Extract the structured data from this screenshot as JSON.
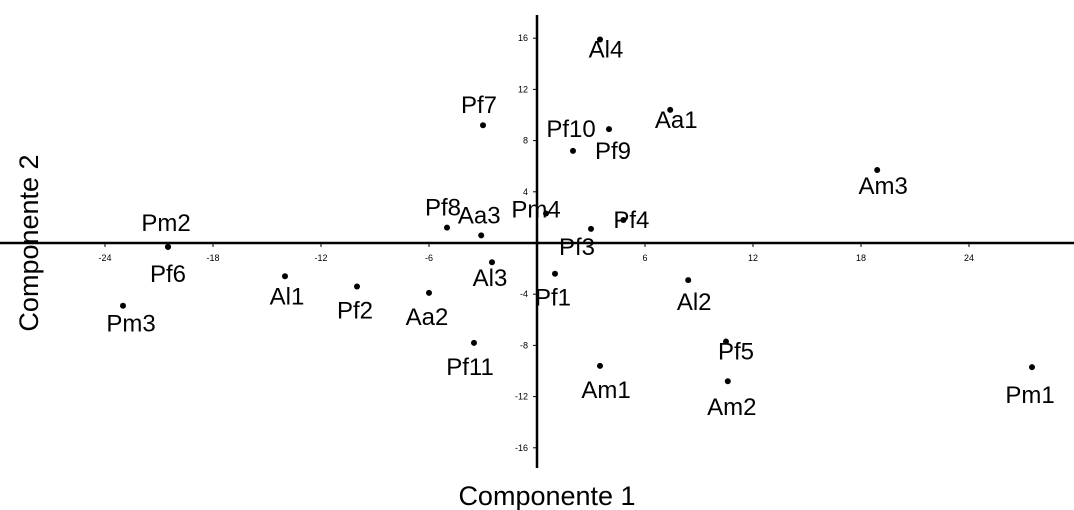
{
  "chart_data": {
    "type": "scatter",
    "title": "",
    "xlabel": "Componente 1",
    "ylabel": "Componente 2",
    "xlim": [
      -31,
      30
    ],
    "ylim": [
      -17.5,
      17.5
    ],
    "grid": false,
    "x_ticks": [
      -24,
      -18,
      -12,
      -6,
      6,
      12,
      18,
      24
    ],
    "y_ticks": [
      16,
      12,
      8,
      4,
      -4,
      -8,
      -12,
      -16
    ],
    "points": [
      {
        "label": "Al4",
        "x": 3.5,
        "y": 15.9
      },
      {
        "label": "Pf7",
        "x": -3.0,
        "y": 9.2
      },
      {
        "label": "Pf10",
        "x": 2.0,
        "y": 7.2
      },
      {
        "label": "Pf9",
        "x": 4.0,
        "y": 8.9
      },
      {
        "label": "Aa1",
        "x": 7.4,
        "y": 10.4
      },
      {
        "label": "Am3",
        "x": 18.9,
        "y": 5.7
      },
      {
        "label": "Pm4",
        "x": 0.5,
        "y": 2.3
      },
      {
        "label": "Pf8",
        "x": -5.0,
        "y": 1.2
      },
      {
        "label": "Aa3",
        "x": -3.1,
        "y": 0.6
      },
      {
        "label": "Pf4",
        "x": 4.8,
        "y": 1.8
      },
      {
        "label": "Pf3",
        "x": 3.0,
        "y": 1.1
      },
      {
        "label": "Pm2",
        "x": -20.5,
        "y": -0.3
      },
      {
        "label": "Pf6",
        "x": -20.5,
        "y": -0.3
      },
      {
        "label": "Al1",
        "x": -14.0,
        "y": -2.6
      },
      {
        "label": "Pf2",
        "x": -10.0,
        "y": -3.4
      },
      {
        "label": "Aa2",
        "x": -6.0,
        "y": -3.9
      },
      {
        "label": "Al3",
        "x": -2.5,
        "y": -1.5
      },
      {
        "label": "Pf1",
        "x": 1.0,
        "y": -2.4
      },
      {
        "label": "Al2",
        "x": 8.4,
        "y": -2.9
      },
      {
        "label": "Pm3",
        "x": -23.0,
        "y": -4.9
      },
      {
        "label": "Pf11",
        "x": -3.5,
        "y": -7.8
      },
      {
        "label": "Pf5",
        "x": 10.5,
        "y": -7.7
      },
      {
        "label": "Am1",
        "x": 3.5,
        "y": -9.6
      },
      {
        "label": "Am2",
        "x": 10.6,
        "y": -10.8
      },
      {
        "label": "Pm1",
        "x": 27.5,
        "y": -9.7
      }
    ]
  }
}
